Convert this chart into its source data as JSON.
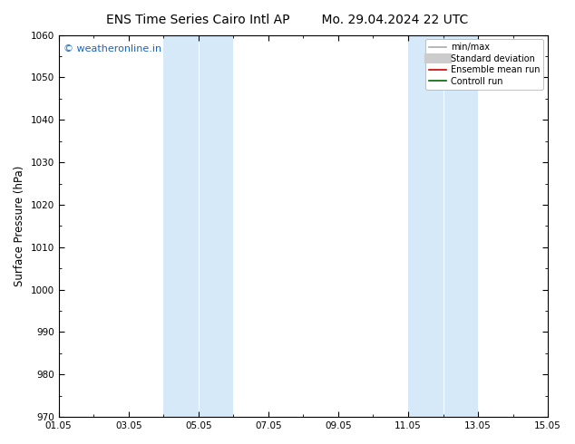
{
  "title_left": "ENS Time Series Cairo Intl AP",
  "title_right": "Mo. 29.04.2024 22 UTC",
  "ylabel": "Surface Pressure (hPa)",
  "ylim": [
    970,
    1060
  ],
  "yticks": [
    970,
    980,
    990,
    1000,
    1010,
    1020,
    1030,
    1040,
    1050,
    1060
  ],
  "xlim": [
    0,
    14
  ],
  "xtick_labels": [
    "01.05",
    "03.05",
    "05.05",
    "07.05",
    "09.05",
    "11.05",
    "13.05",
    "15.05"
  ],
  "xtick_positions": [
    0,
    2,
    4,
    6,
    8,
    10,
    12,
    14
  ],
  "shaded_bands": [
    {
      "x_start": 3.0,
      "x_end": 4.0,
      "color": "#d6e9f8"
    },
    {
      "x_start": 4.0,
      "x_end": 5.0,
      "color": "#d6e9f8"
    },
    {
      "x_start": 10.0,
      "x_end": 11.0,
      "color": "#d6e9f8"
    },
    {
      "x_start": 11.0,
      "x_end": 12.0,
      "color": "#d6e9f8"
    }
  ],
  "band_dividers": [
    4.0,
    11.0
  ],
  "watermark": "© weatheronline.in",
  "watermark_color": "#1565c0",
  "legend_entries": [
    {
      "label": "min/max",
      "color": "#aaaaaa",
      "lw": 1.2,
      "type": "line"
    },
    {
      "label": "Standard deviation",
      "color": "#cccccc",
      "lw": 8,
      "type": "line"
    },
    {
      "label": "Ensemble mean run",
      "color": "#cc0000",
      "lw": 1.2,
      "type": "line"
    },
    {
      "label": "Controll run",
      "color": "#006600",
      "lw": 1.2,
      "type": "line"
    }
  ],
  "background_color": "#ffffff",
  "plot_bg_color": "#ffffff",
  "title_fontsize": 10,
  "tick_fontsize": 7.5,
  "ylabel_fontsize": 8.5,
  "watermark_fontsize": 8
}
